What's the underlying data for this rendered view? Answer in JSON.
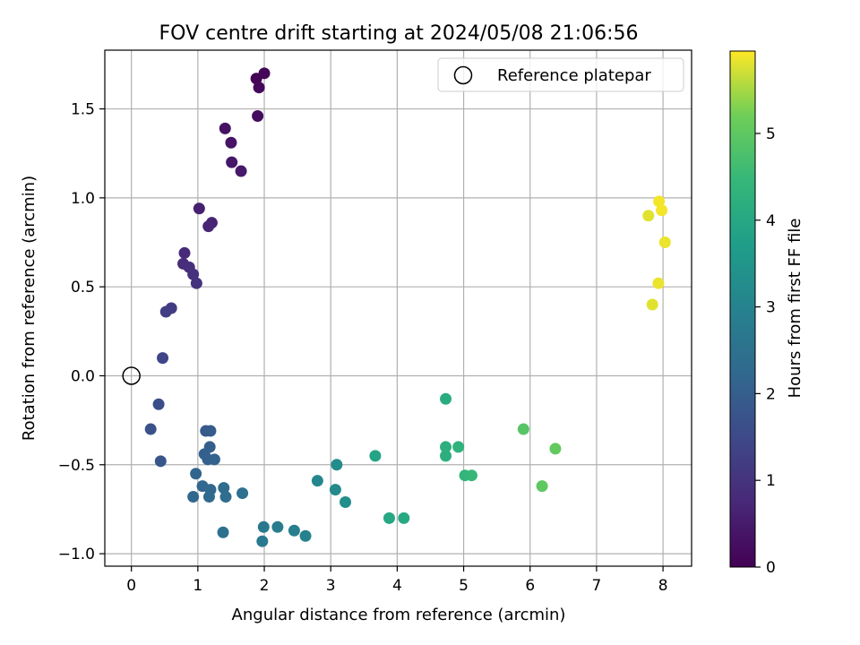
{
  "chart_data": {
    "type": "scatter",
    "title": "FOV centre drift starting at 2024/05/08 21:06:56",
    "xlabel": "Angular distance from reference (arcmin)",
    "ylabel": "Rotation from reference (arcmin)",
    "xlim": [
      -0.4,
      8.43
    ],
    "ylim": [
      -1.07,
      1.83
    ],
    "xticks": [
      0,
      1,
      2,
      3,
      4,
      5,
      6,
      7,
      8
    ],
    "xtick_labels": [
      "0",
      "1",
      "2",
      "3",
      "4",
      "5",
      "6",
      "7",
      "8"
    ],
    "yticks": [
      -1.0,
      -0.5,
      0.0,
      0.5,
      1.0,
      1.5
    ],
    "ytick_labels": [
      "−1.0",
      "−0.5",
      "0.0",
      "0.5",
      "1.0",
      "1.5"
    ],
    "grid": true,
    "legend": {
      "location": "upper right",
      "entries": [
        {
          "label": "Reference platepar",
          "marker": "open-circle"
        }
      ]
    },
    "reference_point": {
      "x": 0,
      "y": 0
    },
    "colorbar": {
      "label": "Hours from first FF file",
      "colormap": "viridis",
      "range": [
        0,
        5.95
      ],
      "ticks": [
        0,
        1,
        2,
        3,
        4,
        5
      ],
      "tick_labels": [
        "0",
        "1",
        "2",
        "3",
        "4",
        "5"
      ]
    },
    "points": [
      {
        "x": 1.88,
        "y": 1.67,
        "c": 0.05
      },
      {
        "x": 2.0,
        "y": 1.7,
        "c": 0.1
      },
      {
        "x": 1.92,
        "y": 1.62,
        "c": 0.15
      },
      {
        "x": 1.9,
        "y": 1.46,
        "c": 0.2
      },
      {
        "x": 1.41,
        "y": 1.39,
        "c": 0.3
      },
      {
        "x": 1.5,
        "y": 1.31,
        "c": 0.35
      },
      {
        "x": 1.51,
        "y": 1.2,
        "c": 0.4
      },
      {
        "x": 1.65,
        "y": 1.15,
        "c": 0.45
      },
      {
        "x": 1.02,
        "y": 0.94,
        "c": 0.6
      },
      {
        "x": 1.21,
        "y": 0.86,
        "c": 0.65
      },
      {
        "x": 1.16,
        "y": 0.84,
        "c": 0.7
      },
      {
        "x": 0.8,
        "y": 0.69,
        "c": 0.8
      },
      {
        "x": 0.78,
        "y": 0.63,
        "c": 0.85
      },
      {
        "x": 0.87,
        "y": 0.61,
        "c": 0.9
      },
      {
        "x": 0.93,
        "y": 0.57,
        "c": 0.95
      },
      {
        "x": 0.98,
        "y": 0.52,
        "c": 1.0
      },
      {
        "x": 0.6,
        "y": 0.38,
        "c": 1.2
      },
      {
        "x": 0.52,
        "y": 0.36,
        "c": 1.25
      },
      {
        "x": 0.47,
        "y": 0.1,
        "c": 1.4
      },
      {
        "x": 0.41,
        "y": -0.16,
        "c": 1.6
      },
      {
        "x": 0.29,
        "y": -0.3,
        "c": 1.7
      },
      {
        "x": 0.44,
        "y": -0.48,
        "c": 1.8
      },
      {
        "x": 1.12,
        "y": -0.31,
        "c": 1.9
      },
      {
        "x": 1.19,
        "y": -0.31,
        "c": 1.95
      },
      {
        "x": 1.18,
        "y": -0.4,
        "c": 2.0
      },
      {
        "x": 1.1,
        "y": -0.44,
        "c": 2.05
      },
      {
        "x": 1.15,
        "y": -0.47,
        "c": 2.05
      },
      {
        "x": 1.25,
        "y": -0.47,
        "c": 2.1
      },
      {
        "x": 0.97,
        "y": -0.55,
        "c": 2.15
      },
      {
        "x": 1.07,
        "y": -0.62,
        "c": 2.2
      },
      {
        "x": 1.19,
        "y": -0.64,
        "c": 2.2
      },
      {
        "x": 0.93,
        "y": -0.68,
        "c": 2.25
      },
      {
        "x": 1.17,
        "y": -0.68,
        "c": 2.3
      },
      {
        "x": 1.39,
        "y": -0.63,
        "c": 2.35
      },
      {
        "x": 1.42,
        "y": -0.68,
        "c": 2.4
      },
      {
        "x": 1.67,
        "y": -0.66,
        "c": 2.45
      },
      {
        "x": 1.38,
        "y": -0.88,
        "c": 2.5
      },
      {
        "x": 1.99,
        "y": -0.85,
        "c": 2.7
      },
      {
        "x": 1.97,
        "y": -0.93,
        "c": 2.75
      },
      {
        "x": 2.2,
        "y": -0.85,
        "c": 2.8
      },
      {
        "x": 2.45,
        "y": -0.87,
        "c": 2.9
      },
      {
        "x": 2.62,
        "y": -0.9,
        "c": 2.95
      },
      {
        "x": 2.8,
        "y": -0.59,
        "c": 3.1
      },
      {
        "x": 3.07,
        "y": -0.64,
        "c": 3.2
      },
      {
        "x": 3.09,
        "y": -0.5,
        "c": 3.25
      },
      {
        "x": 3.22,
        "y": -0.71,
        "c": 3.3
      },
      {
        "x": 3.67,
        "y": -0.45,
        "c": 3.9
      },
      {
        "x": 3.88,
        "y": -0.8,
        "c": 4.0
      },
      {
        "x": 4.1,
        "y": -0.8,
        "c": 4.05
      },
      {
        "x": 4.73,
        "y": -0.13,
        "c": 4.1
      },
      {
        "x": 4.73,
        "y": -0.4,
        "c": 4.2
      },
      {
        "x": 4.73,
        "y": -0.45,
        "c": 4.2
      },
      {
        "x": 4.92,
        "y": -0.4,
        "c": 4.3
      },
      {
        "x": 5.02,
        "y": -0.56,
        "c": 4.4
      },
      {
        "x": 5.12,
        "y": -0.56,
        "c": 4.45
      },
      {
        "x": 5.9,
        "y": -0.3,
        "c": 4.9
      },
      {
        "x": 6.18,
        "y": -0.62,
        "c": 5.0
      },
      {
        "x": 6.38,
        "y": -0.41,
        "c": 5.05
      },
      {
        "x": 7.78,
        "y": 0.9,
        "c": 5.8
      },
      {
        "x": 7.94,
        "y": 0.98,
        "c": 5.9
      },
      {
        "x": 7.98,
        "y": 0.93,
        "c": 5.9
      },
      {
        "x": 8.03,
        "y": 0.75,
        "c": 5.85
      },
      {
        "x": 7.93,
        "y": 0.52,
        "c": 5.85
      },
      {
        "x": 7.84,
        "y": 0.4,
        "c": 5.8
      }
    ]
  }
}
